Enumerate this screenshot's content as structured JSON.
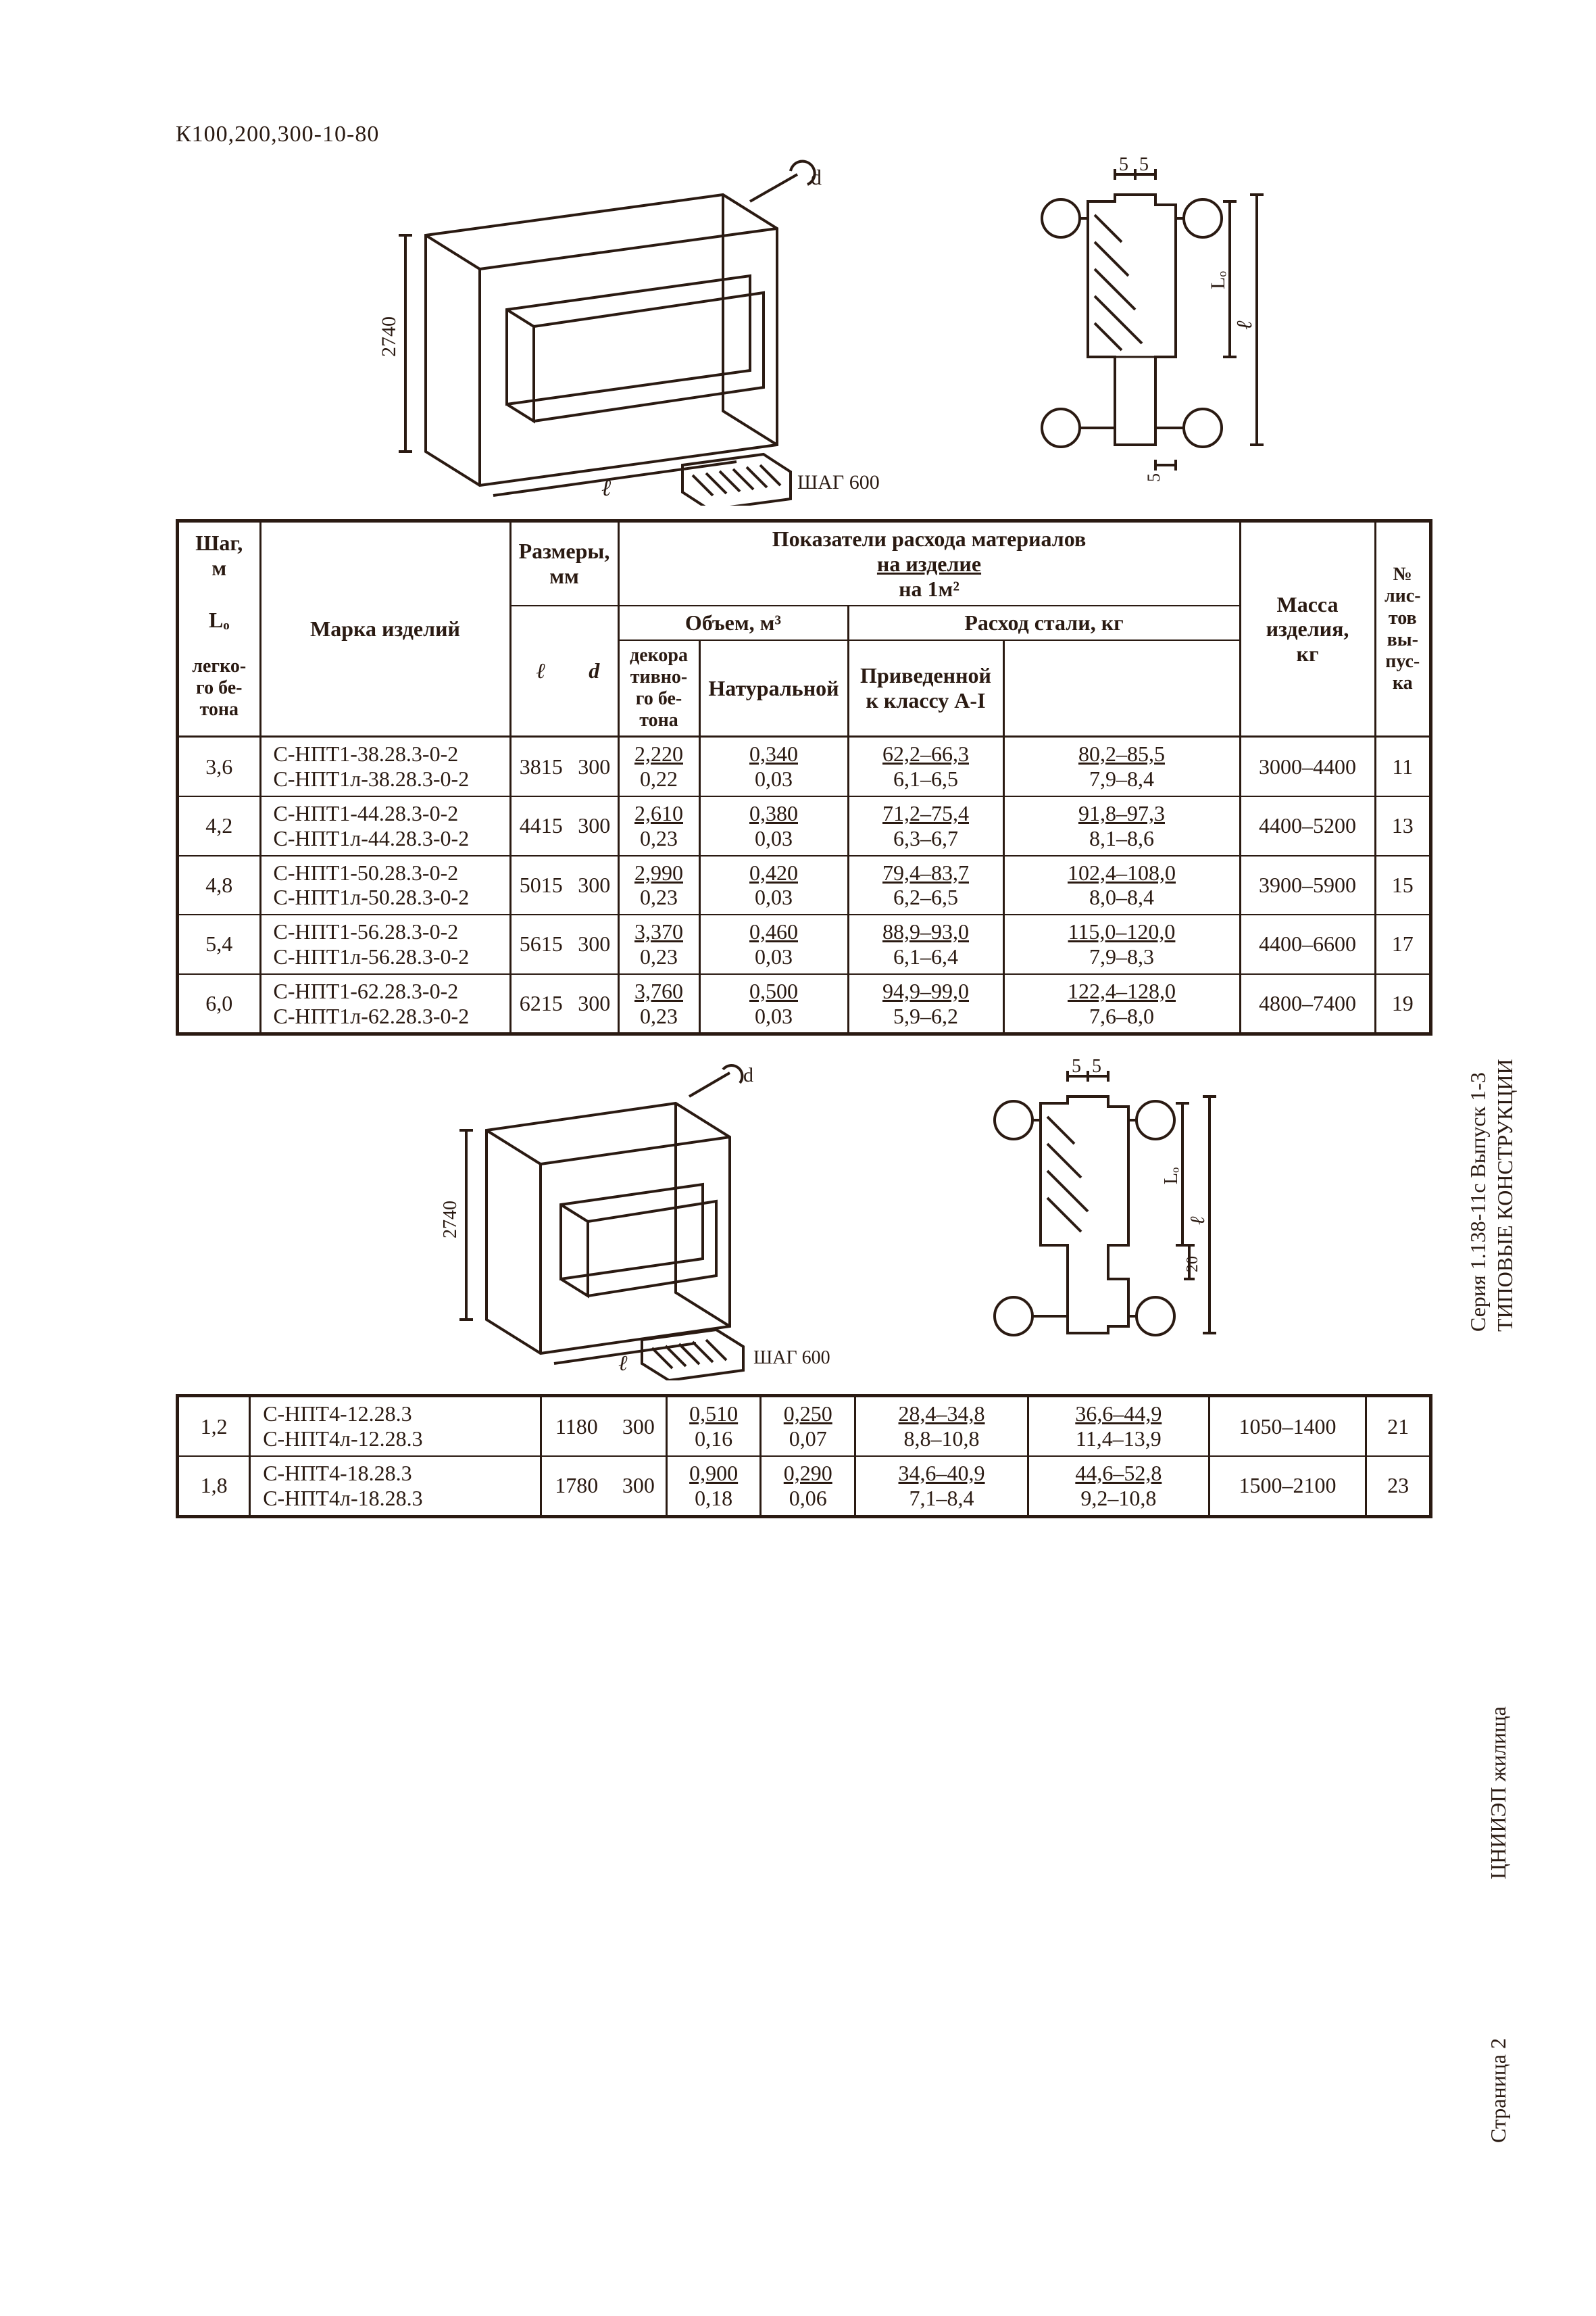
{
  "doc_code": "К100,200,300-10-80",
  "diagram": {
    "iso": {
      "height_label": "2740",
      "length_label": "ℓ",
      "d_label": "d",
      "step_label": "ШАГ 600"
    },
    "section": {
      "top_dims": [
        "5",
        "5"
      ],
      "right_label": "ℓ",
      "lo_label": "Lₒ",
      "bottom_gap": "5",
      "side_gap": "20"
    }
  },
  "header": {
    "shag_top": "Шаг,",
    "shag_unit": "м",
    "lo": "Lₒ",
    "marka": "Марка изделий",
    "razmery": "Размеры,",
    "razmery_unit": "мм",
    "l": "ℓ",
    "d": "d",
    "pokazateli": "Показатели расхода материалов",
    "na_izdelie": "на изделие",
    "na_1m2": "на 1м²",
    "obem": "Объем, м³",
    "legkogo": "легко-\nго бе-\nтона",
    "dekor": "декора\nтивно-\nго бе-\nтона",
    "rashod_stali": "Расход стали, кг",
    "natural": "Натуральной",
    "prived": "Приведенной\nк классу А-I",
    "massa": "Масса\nизделия,\nкг",
    "listov": "№\nлис-\nтов\nвы-\nпус-\nка"
  },
  "rows1": [
    {
      "shag": "3,6",
      "m1": "С-НПТ1-38.28.3-0-2",
      "m2": "С-НПТ1л-38.28.3-0-2",
      "l": "3815",
      "d": "300",
      "v1a": "2,220",
      "v1b": "0,22",
      "v2a": "0,340",
      "v2b": "0,03",
      "n1": "62,2–66,3",
      "n2": "6,1–6,5",
      "p1": "80,2–85,5",
      "p2": "7,9–8,4",
      "mass": "3000–4400",
      "sheet": "11"
    },
    {
      "shag": "4,2",
      "m1": "С-НПТ1-44.28.3-0-2",
      "m2": "С-НПТ1л-44.28.3-0-2",
      "l": "4415",
      "d": "300",
      "v1a": "2,610",
      "v1b": "0,23",
      "v2a": "0,380",
      "v2b": "0,03",
      "n1": "71,2–75,4",
      "n2": "6,3–6,7",
      "p1": "91,8–97,3",
      "p2": "8,1–8,6",
      "mass": "4400–5200",
      "sheet": "13"
    },
    {
      "shag": "4,8",
      "m1": "С-НПТ1-50.28.3-0-2",
      "m2": "С-НПТ1л-50.28.3-0-2",
      "l": "5015",
      "d": "300",
      "v1a": "2,990",
      "v1b": "0,23",
      "v2a": "0,420",
      "v2b": "0,03",
      "n1": "79,4–83,7",
      "n2": "6,2–6,5",
      "p1": "102,4–108,0",
      "p2": "8,0–8,4",
      "mass": "3900–5900",
      "sheet": "15"
    },
    {
      "shag": "5,4",
      "m1": "С-НПТ1-56.28.3-0-2",
      "m2": "С-НПТ1л-56.28.3-0-2",
      "l": "5615",
      "d": "300",
      "v1a": "3,370",
      "v1b": "0,23",
      "v2a": "0,460",
      "v2b": "0,03",
      "n1": "88,9–93,0",
      "n2": "6,1–6,4",
      "p1": "115,0–120,0",
      "p2": "7,9–8,3",
      "mass": "4400–6600",
      "sheet": "17"
    },
    {
      "shag": "6,0",
      "m1": "С-НПТ1-62.28.3-0-2",
      "m2": "С-НПТ1л-62.28.3-0-2",
      "l": "6215",
      "d": "300",
      "v1a": "3,760",
      "v1b": "0,23",
      "v2a": "0,500",
      "v2b": "0,03",
      "n1": "94,9–99,0",
      "n2": "5,9–6,2",
      "p1": "122,4–128,0",
      "p2": "7,6–8,0",
      "mass": "4800–7400",
      "sheet": "19"
    }
  ],
  "rows2": [
    {
      "shag": "1,2",
      "m1": "С-НПТ4-12.28.3",
      "m2": "С-НПТ4л-12.28.3",
      "l": "1180",
      "d": "300",
      "v1a": "0,510",
      "v1b": "0,16",
      "v2a": "0,250",
      "v2b": "0,07",
      "n1": "28,4–34,8",
      "n2": "8,8–10,8",
      "p1": "36,6–44,9",
      "p2": "11,4–13,9",
      "mass": "1050–1400",
      "sheet": "21"
    },
    {
      "shag": "1,8",
      "m1": "С-НПТ4-18.28.3",
      "m2": "С-НПТ4л-18.28.3",
      "l": "1780",
      "d": "300",
      "v1a": "0,900",
      "v1b": "0,18",
      "v2a": "0,290",
      "v2b": "0,06",
      "n1": "34,6–40,9",
      "n2": "7,1–8,4",
      "p1": "44,6–52,8",
      "p2": "9,2–10,8",
      "mass": "1500–2100",
      "sheet": "23"
    }
  ],
  "side": {
    "title": "ТИПОВЫЕ КОНСТРУКЦИИ",
    "series": "Серия 1.138-11с   Выпуск 1-3",
    "org": "ЦНИИЭП жилища",
    "page": "Страница  2"
  },
  "colors": {
    "ink": "#2a1a12",
    "bg": "#ffffff"
  }
}
